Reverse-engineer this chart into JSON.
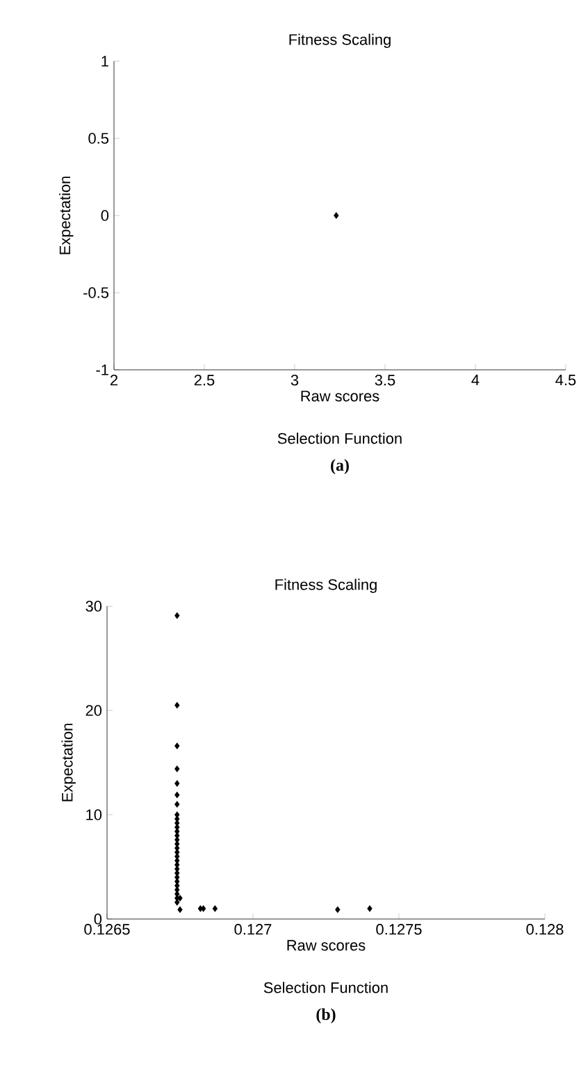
{
  "chart_data": [
    {
      "type": "scatter",
      "title": "Fitness Scaling",
      "xlabel": "Raw scores",
      "ylabel": "Expectation",
      "annotations": [
        "Selection Function",
        "(a)"
      ],
      "series": [
        {
          "color": "#000000",
          "x": [
            3.23
          ],
          "values": [
            0
          ]
        }
      ],
      "xlim": [
        2,
        4.5
      ],
      "ylim": [
        -1,
        1
      ],
      "xticks": [
        2,
        2.5,
        3,
        3.5,
        4,
        4.5
      ],
      "yticks": [
        -1,
        -0.5,
        0,
        0.5,
        1
      ],
      "marker": "diamond"
    },
    {
      "type": "scatter",
      "title": "Fitness Scaling",
      "xlabel": "Raw scores",
      "ylabel": "Expectation",
      "annotations": [
        "Selection Function",
        "(b)"
      ],
      "series": [
        {
          "color": "#000000",
          "x": [
            0.12674,
            0.12674,
            0.12674,
            0.12674,
            0.12674,
            0.12674,
            0.12674,
            0.12674,
            0.12674,
            0.12674,
            0.12674,
            0.12674,
            0.12674,
            0.12674,
            0.12674,
            0.12674,
            0.12674,
            0.12674,
            0.12674,
            0.12674,
            0.12674,
            0.12674,
            0.12674,
            0.12674,
            0.12674,
            0.12674,
            0.12674,
            0.12674,
            0.12674,
            0.12675,
            0.12675,
            0.12682,
            0.12683,
            0.12687,
            0.12729,
            0.1274
          ],
          "values": [
            29.1,
            20.5,
            16.6,
            14.4,
            13.0,
            11.9,
            11.0,
            10.0,
            9.6,
            9.2,
            8.8,
            8.4,
            8.0,
            7.6,
            7.2,
            6.8,
            6.4,
            6.0,
            5.6,
            5.2,
            4.8,
            4.4,
            4.0,
            3.6,
            3.2,
            2.8,
            2.4,
            2.0,
            1.6,
            2.0,
            0.9,
            1.0,
            1.0,
            1.0,
            0.9,
            1.0
          ]
        }
      ],
      "xlim": [
        0.1265,
        0.128
      ],
      "ylim": [
        0,
        30
      ],
      "xticks": [
        0.1265,
        0.127,
        0.1275,
        0.128
      ],
      "yticks": [
        0,
        10,
        20,
        30
      ],
      "marker": "diamond"
    }
  ]
}
